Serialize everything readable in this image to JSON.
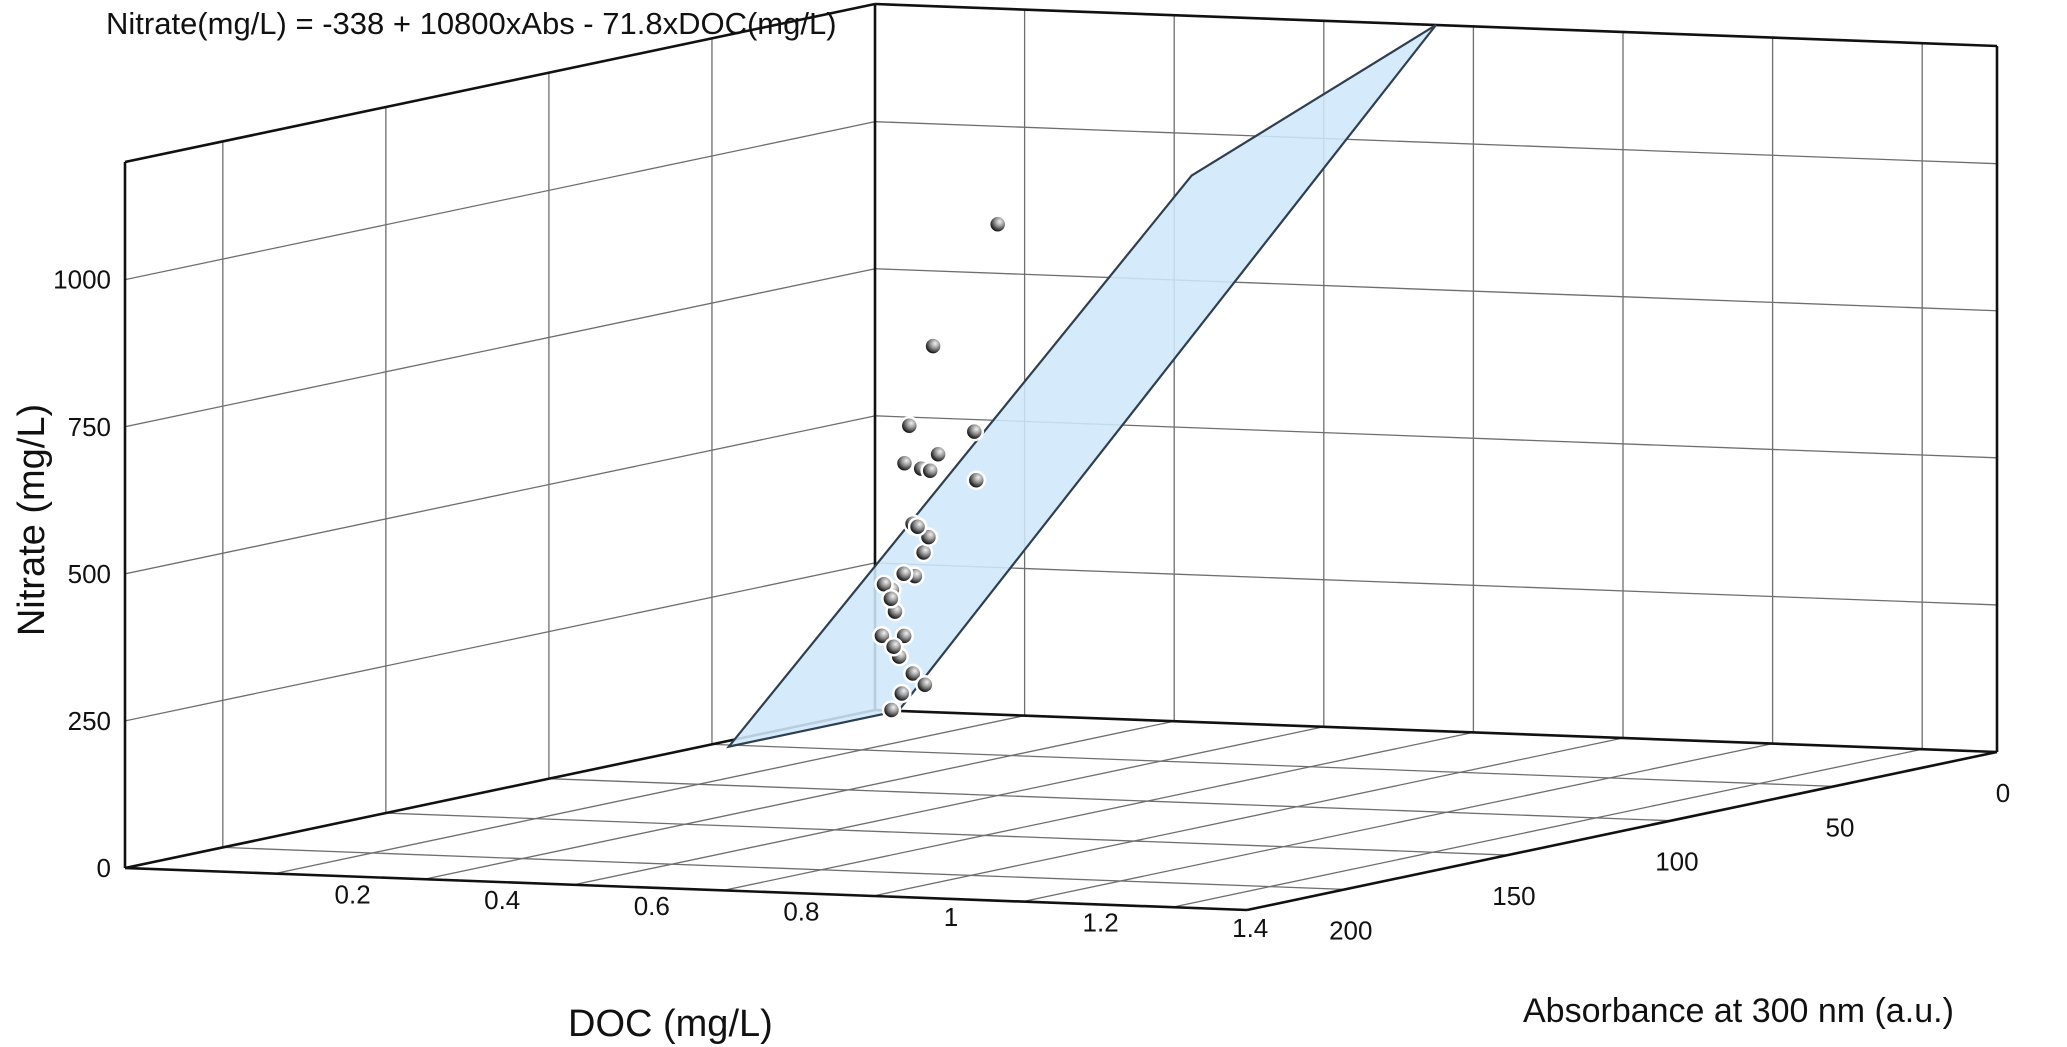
{
  "chart_data": {
    "type": "scatter",
    "title": "Nitrate(mg/L) = -338 + 10800xAbs - 71.8xDOC(mg/L)",
    "xlabel": "Absorbance at 300 nm (a.u.)",
    "ylabel": "DOC (mg/L)",
    "zlabel": "Nitrate (mg/L)",
    "x_ticks": [
      "0.2",
      "0.4",
      "0.6",
      "0.8",
      "1",
      "1.2",
      "1.4"
    ],
    "y_ticks": [
      "0",
      "50",
      "100",
      "150",
      "200"
    ],
    "z_ticks": [
      "0",
      "250",
      "500",
      "750",
      "1000"
    ],
    "grid": true,
    "surface_color": "#cfe8fb",
    "surface_edge_color": "#2f3f4f",
    "points": [
      {
        "abs": 0.061,
        "doc": 2,
        "nitrate": 318
      },
      {
        "abs": 0.068,
        "doc": 4,
        "nitrate": 70
      },
      {
        "abs": 0.062,
        "doc": 6,
        "nitrate": 38
      },
      {
        "abs": 0.057,
        "doc": 8,
        "nitrate": 12
      },
      {
        "abs": 0.076,
        "doc": 10,
        "nitrate": 106
      },
      {
        "abs": 0.087,
        "doc": 11,
        "nitrate": 143
      },
      {
        "abs": 0.079,
        "doc": 12,
        "nitrate": 185
      },
      {
        "abs": 0.11,
        "doc": 13,
        "nitrate": 248
      },
      {
        "abs": 0.126,
        "doc": 14,
        "nitrate": 290
      },
      {
        "abs": 0.088,
        "doc": 15,
        "nitrate": 226
      },
      {
        "abs": 0.12,
        "doc": 16,
        "nitrate": 341
      },
      {
        "abs": 0.15,
        "doc": 18,
        "nitrate": 322
      },
      {
        "abs": 0.22,
        "doc": 20,
        "nitrate": 507
      },
      {
        "abs": 0.24,
        "doc": 24,
        "nitrate": 430
      },
      {
        "abs": 0.18,
        "doc": 26,
        "nitrate": 82
      },
      {
        "abs": 0.14,
        "doc": 30,
        "nitrate": 168
      },
      {
        "abs": 0.21,
        "doc": 34,
        "nitrate": 460
      },
      {
        "abs": 0.25,
        "doc": 38,
        "nitrate": 491
      },
      {
        "abs": 0.24,
        "doc": 42,
        "nitrate": 372
      },
      {
        "abs": 0.27,
        "doc": 45,
        "nitrate": 472
      },
      {
        "abs": 0.23,
        "doc": 50,
        "nitrate": 283
      },
      {
        "abs": 0.3,
        "doc": 60,
        "nitrate": 316
      },
      {
        "abs": 0.33,
        "doc": 70,
        "nitrate": 205
      },
      {
        "abs": 0.37,
        "doc": 80,
        "nitrate": 300
      },
      {
        "abs": 0.41,
        "doc": 85,
        "nitrate": 538
      },
      {
        "abs": 0.47,
        "doc": 90,
        "nitrate": 746
      },
      {
        "abs": 0.46,
        "doc": 95,
        "nitrate": 616
      },
      {
        "abs": 0.6,
        "doc": 100,
        "nitrate": 971
      }
    ]
  }
}
